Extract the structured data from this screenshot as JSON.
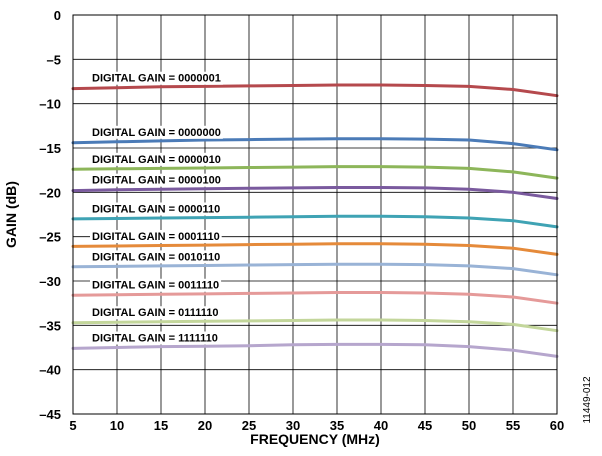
{
  "chart_data": {
    "type": "line",
    "xlabel": "FREQUENCY (MHz)",
    "ylabel": "GAIN (dB)",
    "xlim": [
      5,
      60
    ],
    "ylim": [
      -45,
      0
    ],
    "x_ticks": [
      5,
      10,
      15,
      20,
      25,
      30,
      35,
      40,
      45,
      50,
      55,
      60
    ],
    "y_ticks": [
      0,
      -5,
      -10,
      -15,
      -20,
      -25,
      -30,
      -35,
      -40,
      -45
    ],
    "y_tick_labels": [
      "0",
      "–5",
      "–10",
      "–15",
      "–20",
      "–25",
      "–30",
      "–35",
      "–40",
      "–45"
    ],
    "grid": true,
    "x": [
      5,
      10,
      15,
      20,
      25,
      30,
      35,
      40,
      45,
      50,
      55,
      60
    ],
    "series": [
      {
        "name": "DIGITAL GAIN = 0000001",
        "color": "#b5494d",
        "values": [
          -8.3,
          -8.2,
          -8.1,
          -8.05,
          -8.0,
          -7.95,
          -7.9,
          -7.9,
          -7.95,
          -8.05,
          -8.4,
          -9.1
        ]
      },
      {
        "name": "DIGITAL GAIN = 0000000",
        "color": "#4b7bb7",
        "values": [
          -14.4,
          -14.3,
          -14.2,
          -14.1,
          -14.05,
          -14.0,
          -13.95,
          -13.95,
          -14.0,
          -14.1,
          -14.5,
          -15.2
        ]
      },
      {
        "name": "DIGITAL GAIN = 0000010",
        "color": "#8db65a",
        "values": [
          -17.4,
          -17.35,
          -17.3,
          -17.25,
          -17.2,
          -17.15,
          -17.1,
          -17.1,
          -17.15,
          -17.3,
          -17.7,
          -18.4
        ]
      },
      {
        "name": "DIGITAL GAIN = 0000100",
        "color": "#7a5a9e",
        "values": [
          -19.8,
          -19.7,
          -19.65,
          -19.6,
          -19.55,
          -19.5,
          -19.45,
          -19.45,
          -19.5,
          -19.65,
          -20.0,
          -20.7
        ]
      },
      {
        "name": "DIGITAL GAIN = 0000110",
        "color": "#3fa3b4",
        "values": [
          -23.0,
          -22.95,
          -22.9,
          -22.85,
          -22.8,
          -22.75,
          -22.7,
          -22.7,
          -22.75,
          -22.9,
          -23.2,
          -23.9
        ]
      },
      {
        "name": "DIGITAL GAIN = 0001110",
        "color": "#e58a3a",
        "values": [
          -26.1,
          -26.05,
          -26.0,
          -25.95,
          -25.9,
          -25.85,
          -25.8,
          -25.8,
          -25.85,
          -26.0,
          -26.3,
          -27.0
        ]
      },
      {
        "name": "DIGITAL GAIN = 0010110",
        "color": "#99b3d6",
        "values": [
          -28.4,
          -28.35,
          -28.3,
          -28.25,
          -28.2,
          -28.15,
          -28.1,
          -28.1,
          -28.15,
          -28.3,
          -28.6,
          -29.3
        ]
      },
      {
        "name": "DIGITAL GAIN = 0011110",
        "color": "#e59a99",
        "values": [
          -31.6,
          -31.55,
          -31.5,
          -31.45,
          -31.4,
          -31.35,
          -31.3,
          -31.3,
          -31.35,
          -31.5,
          -31.8,
          -32.5
        ]
      },
      {
        "name": "DIGITAL GAIN = 0111110",
        "color": "#c3d69b",
        "values": [
          -34.7,
          -34.65,
          -34.6,
          -34.55,
          -34.5,
          -34.45,
          -34.4,
          -34.4,
          -34.45,
          -34.6,
          -34.9,
          -35.6
        ]
      },
      {
        "name": "DIGITAL GAIN = 1111110",
        "color": "#b6a6cd",
        "values": [
          -37.6,
          -37.5,
          -37.4,
          -37.35,
          -37.3,
          -37.2,
          -37.15,
          -37.15,
          -37.2,
          -37.4,
          -37.8,
          -38.5
        ]
      }
    ],
    "figure_id": "11449-012"
  }
}
